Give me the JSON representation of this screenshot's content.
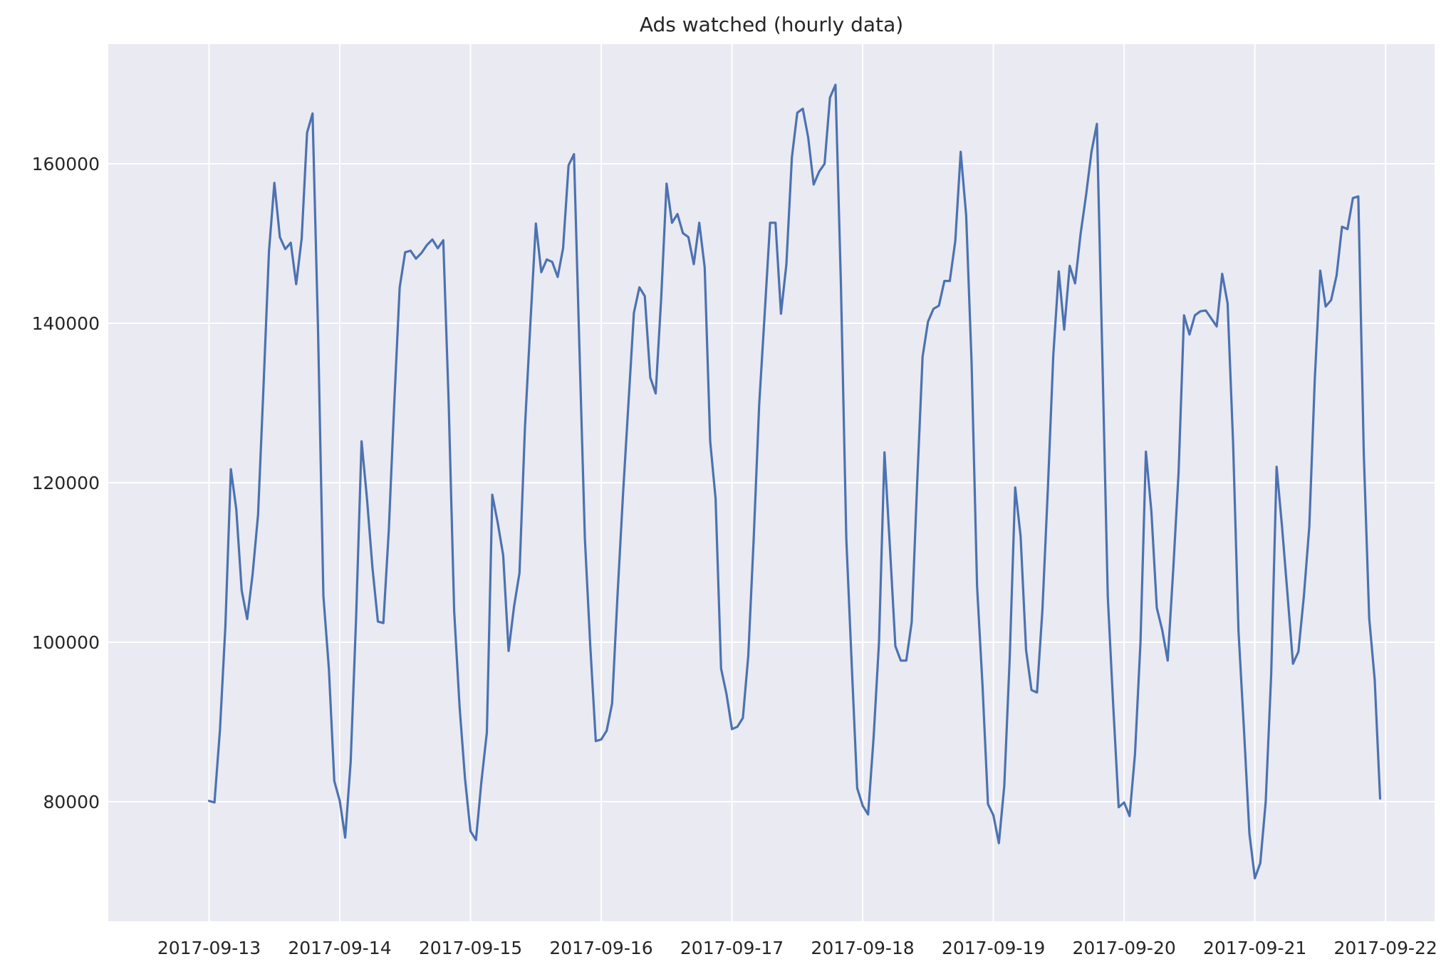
{
  "chart_data": {
    "type": "line",
    "title": "Ads watched (hourly data)",
    "xlabel": "",
    "ylabel": "",
    "x_start": "2017-09-13 00:00",
    "x_step": "1 hour",
    "xlim": [
      "2017-09-12 05:30",
      "2017-09-22 09:00"
    ],
    "ylim": [
      65000,
      175000
    ],
    "x_ticks": [
      "2017-09-13",
      "2017-09-14",
      "2017-09-15",
      "2017-09-16",
      "2017-09-17",
      "2017-09-18",
      "2017-09-19",
      "2017-09-20",
      "2017-09-21",
      "2017-09-22"
    ],
    "y_ticks": [
      80000,
      100000,
      120000,
      140000,
      160000
    ],
    "grid": true,
    "legend": "none",
    "colors": {
      "background": "#eaeaf2",
      "grid": "#ffffff",
      "line": "#4c72b0"
    },
    "series": [
      {
        "values": [
          80100,
          79900,
          89000,
          102000,
          121700,
          116700,
          106500,
          102900,
          108500,
          116000,
          132000,
          149000,
          157600,
          150800,
          149300,
          150100,
          144900,
          150600,
          163900,
          166300,
          139500,
          105800,
          96700,
          82600,
          80100,
          75500,
          85000,
          103000,
          125200,
          118000,
          109300,
          102600,
          102400,
          114000,
          130000,
          144500,
          148900,
          149100,
          148100,
          148800,
          149800,
          150500,
          149400,
          150400,
          130000,
          103900,
          91900,
          82800,
          76300,
          75200,
          82500,
          88700,
          118500,
          115000,
          110900,
          98900,
          104500,
          108700,
          127000,
          140000,
          152500,
          146400,
          148000,
          147700,
          145800,
          149400,
          159800,
          161200,
          137000,
          113000,
          99500,
          87600,
          87800,
          88900,
          92300,
          106000,
          118500,
          130000,
          141300,
          144500,
          143400,
          133200,
          131200,
          143100,
          157500,
          152600,
          153700,
          151300,
          150800,
          147400,
          152600,
          147000,
          125200,
          118000,
          96700,
          93500,
          89100,
          89400,
          90500,
          98300,
          113000,
          129800,
          141000,
          152600,
          152600,
          141200,
          147400,
          160800,
          166400,
          166900,
          163300,
          157400,
          159000,
          160000,
          168300,
          169900,
          145000,
          113000,
          97000,
          81700,
          79500,
          78400,
          88000,
          100000,
          123800,
          112000,
          99500,
          97700,
          97700,
          102500,
          120000,
          135800,
          140200,
          141800,
          142200,
          145300,
          145300,
          150300,
          161500,
          153500,
          135000,
          107000,
          94600,
          79700,
          78300,
          74800,
          82000,
          98000,
          119400,
          113300,
          99000,
          94000,
          93700,
          104000,
          119300,
          136000,
          146500,
          139200,
          147200,
          145000,
          151200,
          156000,
          161500,
          165000,
          136000,
          105700,
          92100,
          79300,
          79900,
          78200,
          86000,
          100000,
          123900,
          116400,
          104300,
          101500,
          97700,
          109000,
          121300,
          141000,
          138600,
          141000,
          141500,
          141600,
          140600,
          139600,
          146200,
          142500,
          125000,
          101400,
          89000,
          76000,
          70400,
          72300,
          80000,
          96000,
          122000,
          114400,
          106000,
          97300,
          98800,
          105800,
          114500,
          133000,
          146600,
          142100,
          142900,
          146000,
          152100,
          151800,
          155700,
          155900,
          123600,
          103000,
          95300,
          80400
        ]
      }
    ]
  }
}
